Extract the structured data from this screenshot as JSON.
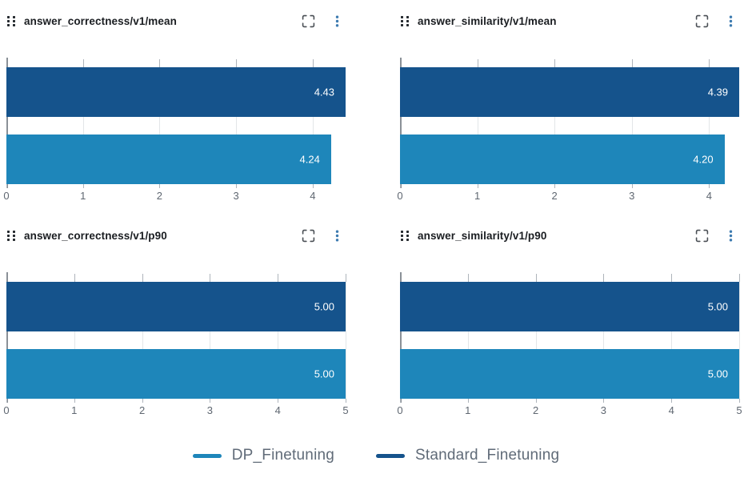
{
  "page": {
    "background": "#FFFFFF"
  },
  "colors": {
    "dp_finetuning": "#1E86BA",
    "standard_finetuning": "#15538C",
    "gridline": "#E3E6E8",
    "axis_tick": "#AEB4BB",
    "zero_line": "#8A9097",
    "axis_label": "#5F6771",
    "bar_label": "#FFFFFF",
    "menu_icon": "#3D7BB0",
    "header_icon": "#4A4F55",
    "title_text": "#1A1D21",
    "legend_text": "#606B78"
  },
  "header_icons": {
    "drag": "drag-handle-grip-dots",
    "expand": "fullscreen-expand-corners",
    "menu": "kebab-vertical-dots"
  },
  "legend": {
    "position": "bottom-center",
    "items": [
      {
        "label": "DP_Finetuning",
        "color": "#1E86BA"
      },
      {
        "label": "Standard_Finetuning",
        "color": "#15538C"
      }
    ]
  },
  "chart_data": [
    {
      "type": "bar",
      "orientation": "horizontal",
      "title": "answer_correctness/v1/mean",
      "series": [
        {
          "name": "Standard_Finetuning",
          "value": 4.43,
          "label": "4.43",
          "color": "#15538C"
        },
        {
          "name": "DP_Finetuning",
          "value": 4.24,
          "label": "4.24",
          "color": "#1E86BA"
        }
      ],
      "xticks": [
        0,
        1,
        2,
        3,
        4
      ],
      "xlim": [
        0,
        4.43
      ],
      "grid": true,
      "value_labels": "inside-right"
    },
    {
      "type": "bar",
      "orientation": "horizontal",
      "title": "answer_similarity/v1/mean",
      "series": [
        {
          "name": "Standard_Finetuning",
          "value": 4.39,
          "label": "4.39",
          "color": "#15538C"
        },
        {
          "name": "DP_Finetuning",
          "value": 4.2,
          "label": "4.20",
          "color": "#1E86BA"
        }
      ],
      "xticks": [
        0,
        1,
        2,
        3,
        4
      ],
      "xlim": [
        0,
        4.39
      ],
      "grid": true,
      "value_labels": "inside-right"
    },
    {
      "type": "bar",
      "orientation": "horizontal",
      "title": "answer_correctness/v1/p90",
      "series": [
        {
          "name": "Standard_Finetuning",
          "value": 5.0,
          "label": "5.00",
          "color": "#15538C"
        },
        {
          "name": "DP_Finetuning",
          "value": 5.0,
          "label": "5.00",
          "color": "#1E86BA"
        }
      ],
      "xticks": [
        0,
        1,
        2,
        3,
        4,
        5
      ],
      "xlim": [
        0,
        5
      ],
      "grid": true,
      "value_labels": "inside-right"
    },
    {
      "type": "bar",
      "orientation": "horizontal",
      "title": "answer_similarity/v1/p90",
      "series": [
        {
          "name": "Standard_Finetuning",
          "value": 5.0,
          "label": "5.00",
          "color": "#15538C"
        },
        {
          "name": "DP_Finetuning",
          "value": 5.0,
          "label": "5.00",
          "color": "#1E86BA"
        }
      ],
      "xticks": [
        0,
        1,
        2,
        3,
        4,
        5
      ],
      "xlim": [
        0,
        5
      ],
      "grid": true,
      "value_labels": "inside-right"
    }
  ]
}
